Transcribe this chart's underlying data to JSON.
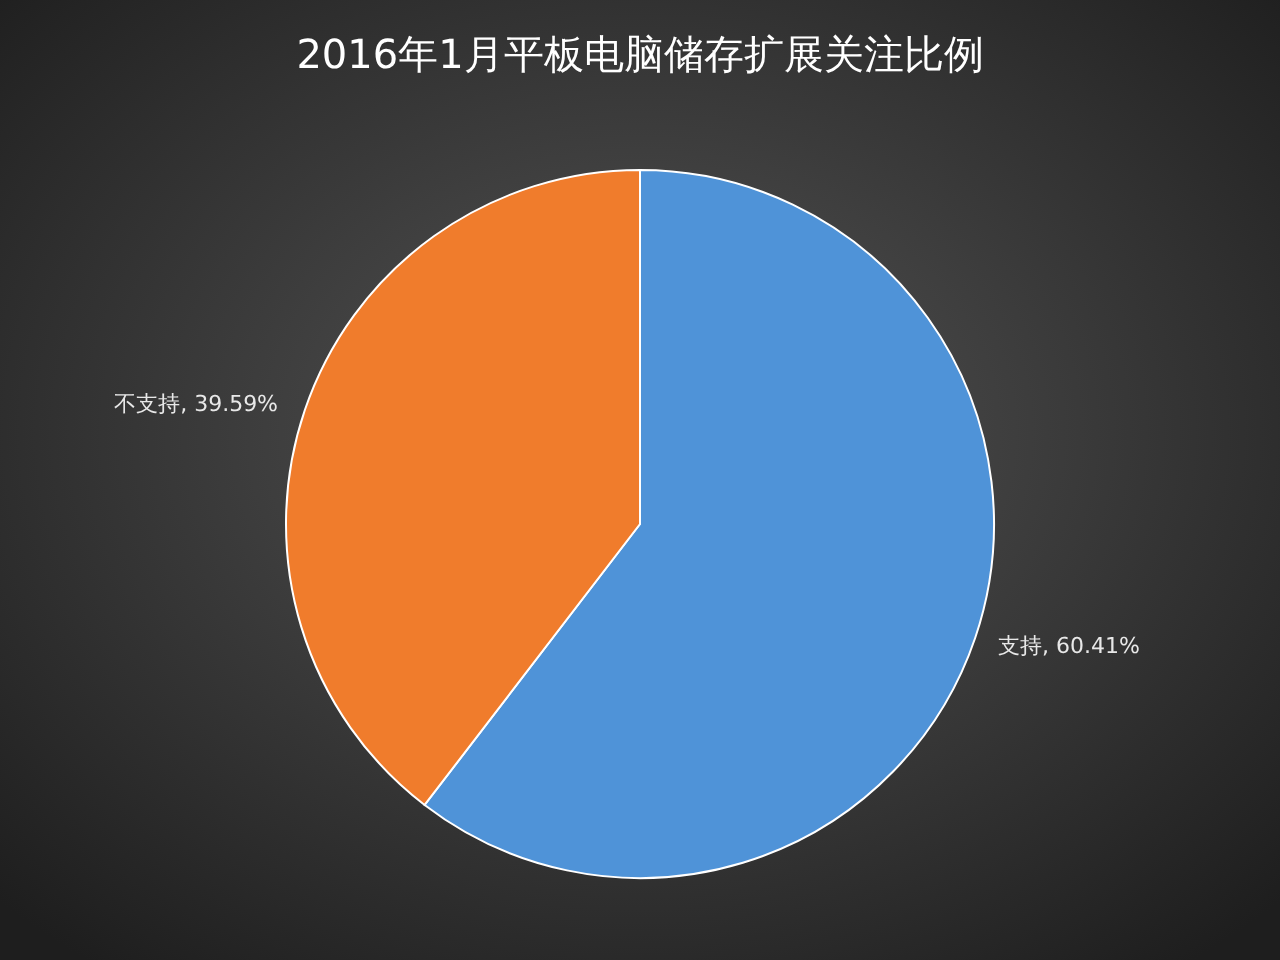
{
  "chart_data": {
    "type": "pie",
    "title": "2016年1月平板电脑储存扩展关注比例",
    "categories": [
      "支持",
      "不支持"
    ],
    "values": [
      60.41,
      39.59
    ],
    "colors": [
      "#4f93d8",
      "#f07c2c"
    ],
    "value_labels": [
      ", 60.41%",
      ", 39.59%"
    ]
  }
}
